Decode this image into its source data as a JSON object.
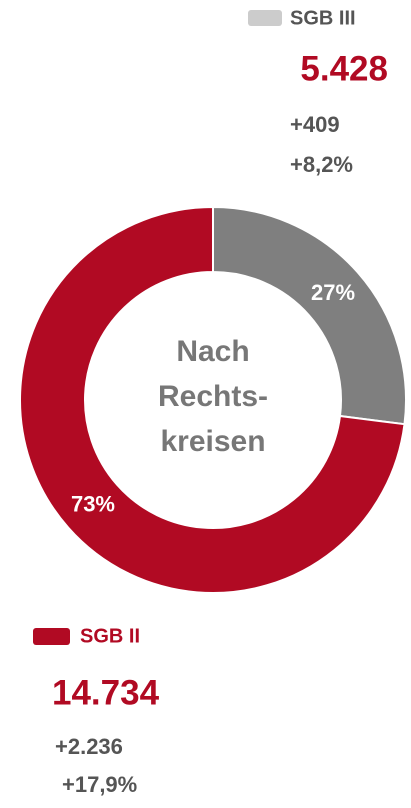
{
  "chart_data": {
    "type": "donut",
    "center_label": [
      "Nach",
      "Rechts-",
      "kreisen"
    ],
    "series": [
      {
        "name": "SGB III",
        "color": "#7f7f7f",
        "legend_color": "#cccccc",
        "value": 27,
        "value_label": "27%",
        "count_label": "5.428",
        "change_label": "+409",
        "change_pct_label": "+8,2%"
      },
      {
        "name": "SGB II",
        "color": "#b10a23",
        "legend_color": "#b10a23",
        "value": 73,
        "value_label": "73%",
        "count_label": "14.734",
        "change_label": "+2.236",
        "change_pct_label": "+17,9%"
      }
    ]
  }
}
